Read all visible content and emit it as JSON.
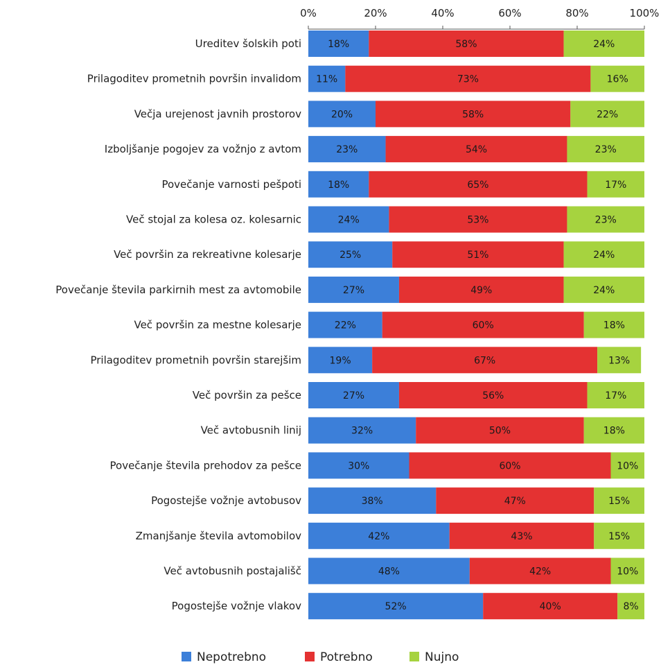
{
  "chart_data": {
    "type": "bar",
    "orientation": "horizontal",
    "stacked": "percent",
    "categories": [
      "Ureditev šolskih poti",
      "Prilagoditev prometnih površin invalidom",
      "Večja urejenost javnih prostorov",
      "Izboljšanje pogojev za vožnjo z avtom",
      "Povečanje varnosti pešpoti",
      "Več stojal za kolesa oz. kolesarnic",
      "Več površin za rekreativne kolesarje",
      "Povečanje števila parkirnih mest za avtomobile",
      "Več površin za mestne kolesarje",
      "Prilagoditev prometnih površin starejšim",
      "Več površin za pešce",
      "Več avtobusnih linij",
      "Povečanje števila prehodov za pešce",
      "Pogostejše vožnje avtobusov",
      "Zmanjšanje števila avtomobilov",
      "Več avtobusnih postajališč",
      "Pogostejše vožnje vlakov"
    ],
    "series": [
      {
        "name": "Nepotrebno",
        "color": "#3c7fd9",
        "values": [
          18,
          11,
          20,
          23,
          18,
          24,
          25,
          27,
          22,
          19,
          27,
          32,
          30,
          38,
          42,
          48,
          52
        ]
      },
      {
        "name": "Potrebno",
        "color": "#e43232",
        "values": [
          58,
          73,
          58,
          54,
          65,
          53,
          51,
          49,
          60,
          67,
          56,
          50,
          60,
          47,
          43,
          42,
          40
        ]
      },
      {
        "name": "Nujno",
        "color": "#a6d33f",
        "values": [
          24,
          16,
          22,
          23,
          17,
          23,
          24,
          24,
          18,
          13,
          17,
          18,
          10,
          15,
          15,
          10,
          8
        ]
      }
    ],
    "xticks": [
      "0%",
      "20%",
      "40%",
      "60%",
      "80%",
      "100%"
    ],
    "xlim": [
      0,
      100
    ],
    "axis_position": "top",
    "legend_position": "bottom",
    "grid": false
  }
}
